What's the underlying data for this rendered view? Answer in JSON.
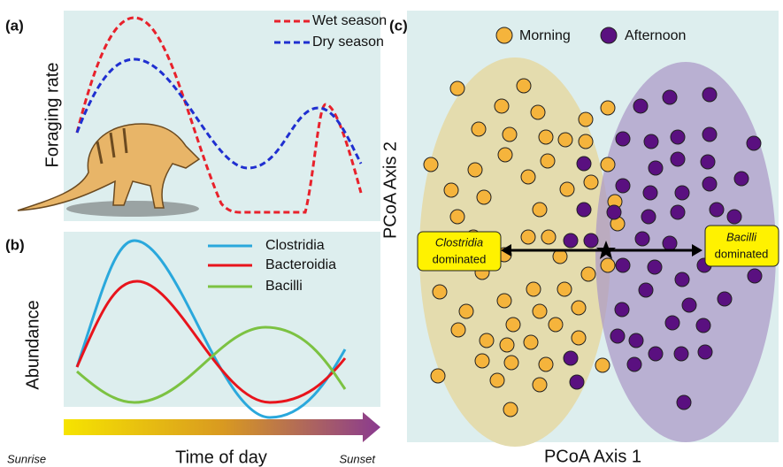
{
  "panels": [
    {
      "label": "(a)",
      "y_axis_label": "Foraging rate",
      "legend": [
        "Wet season",
        "Dry season"
      ]
    },
    {
      "label": "(b)",
      "y_axis_label": "Abundance",
      "legend": [
        "Clostridia",
        "Bacteroidia",
        "Bacilli"
      ],
      "x_axis_label": "Time of day",
      "x_start": "Sunrise",
      "x_end": "Sunset"
    },
    {
      "label": "(c)",
      "legend": [
        "Morning",
        "Afternoon"
      ],
      "x_axis_label": "PCoA Axis 1",
      "y_axis_label": "PCoA Axis 2",
      "annotations": [
        [
          "Clostridia",
          "dominated"
        ],
        [
          "Bacilli",
          "dominated"
        ]
      ]
    }
  ]
}
